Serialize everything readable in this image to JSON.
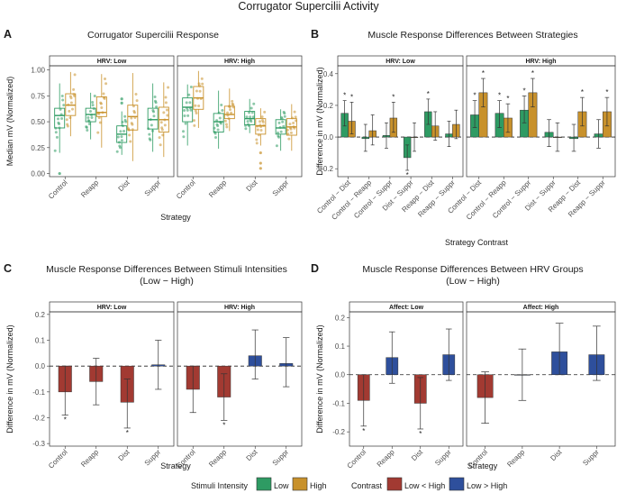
{
  "main_title": "Corrugator Supercilii Activity",
  "colors": {
    "low": "#2e9b63",
    "high": "#c8912b",
    "low_lt_high": "#a23a32",
    "low_gt_high": "#2e4f9c",
    "strip_bg": "#ffffff",
    "frame": "#333333"
  },
  "legend": {
    "stimuli_title": "Stimuli Intensity",
    "stimuli_items": [
      {
        "label": "Low",
        "color_key": "low"
      },
      {
        "label": "High",
        "color_key": "high"
      }
    ],
    "contrast_title": "Contrast",
    "contrast_items": [
      {
        "label": "Low < High",
        "color_key": "low_lt_high"
      },
      {
        "label": "Low > High",
        "color_key": "low_gt_high"
      }
    ]
  },
  "chart_data": [
    {
      "id": "A",
      "letter": "A",
      "type": "box",
      "title": "Corrugator Supercilii Response",
      "xlabel": "Strategy",
      "ylabel": "Median mV (Normalized)",
      "ylim": [
        -0.03,
        1.04
      ],
      "yticks": [
        0.0,
        0.25,
        0.5,
        0.75,
        1.0
      ],
      "ytick_labels": [
        "0.00",
        "0.25",
        "0.50",
        "0.75",
        "1.00"
      ],
      "categories": [
        "Control",
        "Reapp",
        "Dist",
        "Suppr"
      ],
      "series_names": [
        "Low",
        "High"
      ],
      "facets": [
        {
          "label": "HRV: Low",
          "boxes": [
            {
              "cat": "Control",
              "series": "Low",
              "q1": 0.44,
              "med": 0.56,
              "q3": 0.63,
              "wmin": 0.2,
              "wmax": 0.87,
              "outliers": [
                0.0
              ]
            },
            {
              "cat": "Control",
              "series": "High",
              "q1": 0.56,
              "med": 0.66,
              "q3": 0.77,
              "wmin": 0.36,
              "wmax": 0.98,
              "outliers": []
            },
            {
              "cat": "Reapp",
              "series": "Low",
              "q1": 0.5,
              "med": 0.57,
              "q3": 0.63,
              "wmin": 0.33,
              "wmax": 0.78,
              "outliers": []
            },
            {
              "cat": "Reapp",
              "series": "High",
              "q1": 0.55,
              "med": 0.59,
              "q3": 0.74,
              "wmin": 0.25,
              "wmax": 0.96,
              "outliers": []
            },
            {
              "cat": "Dist",
              "series": "Low",
              "q1": 0.3,
              "med": 0.38,
              "q3": 0.46,
              "wmin": 0.18,
              "wmax": 0.6,
              "outliers": [
                0.68,
                0.72
              ]
            },
            {
              "cat": "Dist",
              "series": "High",
              "q1": 0.42,
              "med": 0.55,
              "q3": 0.66,
              "wmin": 0.12,
              "wmax": 0.97,
              "outliers": []
            },
            {
              "cat": "Suppr",
              "series": "Low",
              "q1": 0.43,
              "med": 0.52,
              "q3": 0.63,
              "wmin": 0.21,
              "wmax": 0.87,
              "outliers": []
            },
            {
              "cat": "Suppr",
              "series": "High",
              "q1": 0.4,
              "med": 0.52,
              "q3": 0.64,
              "wmin": 0.16,
              "wmax": 0.88,
              "outliers": []
            }
          ]
        },
        {
          "label": "HRV: High",
          "boxes": [
            {
              "cat": "Control",
              "series": "Low",
              "q1": 0.5,
              "med": 0.64,
              "q3": 0.73,
              "wmin": 0.27,
              "wmax": 0.86,
              "outliers": []
            },
            {
              "cat": "Control",
              "series": "High",
              "q1": 0.62,
              "med": 0.73,
              "q3": 0.84,
              "wmin": 0.44,
              "wmax": 0.99,
              "outliers": []
            },
            {
              "cat": "Reapp",
              "series": "Low",
              "q1": 0.4,
              "med": 0.5,
              "q3": 0.58,
              "wmin": 0.24,
              "wmax": 0.8,
              "outliers": []
            },
            {
              "cat": "Reapp",
              "series": "High",
              "q1": 0.53,
              "med": 0.57,
              "q3": 0.65,
              "wmin": 0.41,
              "wmax": 0.82,
              "outliers": []
            },
            {
              "cat": "Dist",
              "series": "Low",
              "q1": 0.47,
              "med": 0.53,
              "q3": 0.6,
              "wmin": 0.39,
              "wmax": 0.72,
              "outliers": []
            },
            {
              "cat": "Dist",
              "series": "High",
              "q1": 0.38,
              "med": 0.46,
              "q3": 0.53,
              "wmin": 0.27,
              "wmax": 0.63,
              "outliers": [
                0.2,
                0.1,
                0.05
              ]
            },
            {
              "cat": "Suppr",
              "series": "Low",
              "q1": 0.38,
              "med": 0.44,
              "q3": 0.52,
              "wmin": 0.22,
              "wmax": 0.62,
              "outliers": []
            },
            {
              "cat": "Suppr",
              "series": "High",
              "q1": 0.37,
              "med": 0.45,
              "q3": 0.53,
              "wmin": 0.22,
              "wmax": 0.67,
              "outliers": []
            }
          ]
        }
      ]
    },
    {
      "id": "B",
      "letter": "B",
      "type": "bar",
      "title": "Muscle Response Differences Between Strategies",
      "xlabel": "Strategy Contrast",
      "ylabel": "Difference in mV (Normalized)",
      "ylim": [
        -0.25,
        0.45
      ],
      "yticks": [
        -0.2,
        0.0,
        0.2,
        0.4
      ],
      "ytick_labels": [
        "-0.2",
        "0.0",
        "0.2",
        "0.4"
      ],
      "categories": [
        "Control − Dist",
        "Control − Reapp",
        "Control − Suppr",
        "Dist − Suppr",
        "Reapp − Dist",
        "Reapp − Suppr"
      ],
      "series_names": [
        "Low",
        "High"
      ],
      "facets": [
        {
          "label": "HRV: Low",
          "bars": [
            {
              "cat": 0,
              "series": "Low",
              "value": 0.15,
              "lo": 0.07,
              "hi": 0.23,
              "star": true
            },
            {
              "cat": 0,
              "series": "High",
              "value": 0.1,
              "lo": 0.02,
              "hi": 0.22,
              "star": true
            },
            {
              "cat": 1,
              "series": "Low",
              "value": -0.01,
              "lo": -0.09,
              "hi": 0.08,
              "star": false
            },
            {
              "cat": 1,
              "series": "High",
              "value": 0.04,
              "lo": -0.05,
              "hi": 0.14,
              "star": false
            },
            {
              "cat": 2,
              "series": "Low",
              "value": 0.01,
              "lo": -0.07,
              "hi": 0.09,
              "star": false
            },
            {
              "cat": 2,
              "series": "High",
              "value": 0.12,
              "lo": 0.03,
              "hi": 0.22,
              "star": true
            },
            {
              "cat": 3,
              "series": "Low",
              "value": -0.13,
              "lo": -0.21,
              "hi": -0.05,
              "star": true
            },
            {
              "cat": 3,
              "series": "High",
              "value": 0.0,
              "lo": -0.09,
              "hi": 0.09,
              "star": false
            },
            {
              "cat": 4,
              "series": "Low",
              "value": 0.16,
              "lo": 0.08,
              "hi": 0.24,
              "star": true
            },
            {
              "cat": 4,
              "series": "High",
              "value": 0.07,
              "lo": -0.02,
              "hi": 0.16,
              "star": false
            },
            {
              "cat": 5,
              "series": "Low",
              "value": 0.02,
              "lo": -0.06,
              "hi": 0.1,
              "star": false
            },
            {
              "cat": 5,
              "series": "High",
              "value": 0.08,
              "lo": -0.01,
              "hi": 0.17,
              "star": false
            }
          ]
        },
        {
          "label": "HRV: High",
          "bars": [
            {
              "cat": 0,
              "series": "Low",
              "value": 0.14,
              "lo": 0.06,
              "hi": 0.23,
              "star": true
            },
            {
              "cat": 0,
              "series": "High",
              "value": 0.28,
              "lo": 0.19,
              "hi": 0.37,
              "star": true
            },
            {
              "cat": 1,
              "series": "Low",
              "value": 0.15,
              "lo": 0.06,
              "hi": 0.23,
              "star": true
            },
            {
              "cat": 1,
              "series": "High",
              "value": 0.12,
              "lo": 0.03,
              "hi": 0.21,
              "star": true
            },
            {
              "cat": 2,
              "series": "Low",
              "value": 0.17,
              "lo": 0.09,
              "hi": 0.26,
              "star": true
            },
            {
              "cat": 2,
              "series": "High",
              "value": 0.28,
              "lo": 0.19,
              "hi": 0.37,
              "star": true
            },
            {
              "cat": 3,
              "series": "Low",
              "value": 0.03,
              "lo": -0.06,
              "hi": 0.11,
              "star": false
            },
            {
              "cat": 3,
              "series": "High",
              "value": 0.0,
              "lo": -0.09,
              "hi": 0.09,
              "star": false
            },
            {
              "cat": 4,
              "series": "Low",
              "value": -0.01,
              "lo": -0.09,
              "hi": 0.08,
              "star": false
            },
            {
              "cat": 4,
              "series": "High",
              "value": 0.16,
              "lo": 0.07,
              "hi": 0.25,
              "star": true
            },
            {
              "cat": 5,
              "series": "Low",
              "value": 0.02,
              "lo": -0.07,
              "hi": 0.11,
              "star": false
            },
            {
              "cat": 5,
              "series": "High",
              "value": 0.16,
              "lo": 0.07,
              "hi": 0.25,
              "star": true
            }
          ]
        }
      ]
    },
    {
      "id": "C",
      "letter": "C",
      "type": "bar",
      "title": "Muscle Response Differences Between Stimuli Intensities",
      "subtitle": "(Low − High)",
      "xlabel": "Strategy",
      "ylabel": "Difference in mV (Normalized)",
      "ylim": [
        -0.31,
        0.21
      ],
      "yticks": [
        -0.3,
        -0.2,
        -0.1,
        0.0,
        0.1,
        0.2
      ],
      "ytick_labels": [
        "-0.3",
        "-0.2",
        "-0.1",
        "0.0",
        "0.1",
        "0.2"
      ],
      "categories": [
        "Control",
        "Reapp",
        "Dist",
        "Suppr"
      ],
      "facets": [
        {
          "label": "HRV: Low",
          "bars": [
            {
              "cat": 0,
              "value": -0.1,
              "lo": -0.19,
              "hi": 0.0,
              "star": true
            },
            {
              "cat": 1,
              "value": -0.06,
              "lo": -0.15,
              "hi": 0.03,
              "star": false
            },
            {
              "cat": 2,
              "value": -0.14,
              "lo": -0.24,
              "hi": -0.05,
              "star": true
            },
            {
              "cat": 3,
              "value": 0.005,
              "lo": -0.09,
              "hi": 0.1,
              "star": false
            }
          ]
        },
        {
          "label": "HRV: High",
          "bars": [
            {
              "cat": 0,
              "value": -0.09,
              "lo": -0.18,
              "hi": 0.0,
              "star": false
            },
            {
              "cat": 1,
              "value": -0.12,
              "lo": -0.21,
              "hi": -0.03,
              "star": true
            },
            {
              "cat": 2,
              "value": 0.04,
              "lo": -0.05,
              "hi": 0.14,
              "star": false
            },
            {
              "cat": 3,
              "value": 0.01,
              "lo": -0.08,
              "hi": 0.11,
              "star": false
            }
          ]
        }
      ]
    },
    {
      "id": "D",
      "letter": "D",
      "type": "bar",
      "title": "Muscle Response Differences Between HRV Groups",
      "subtitle": "(Low − High)",
      "xlabel": "Strategy",
      "ylabel": "Difference in mV (Normalized)",
      "ylim": [
        -0.25,
        0.22
      ],
      "yticks": [
        -0.2,
        -0.1,
        0.0,
        0.1,
        0.2
      ],
      "ytick_labels": [
        "-0.2",
        "-0.1",
        "0.0",
        "0.1",
        "0.2"
      ],
      "categories": [
        "Control",
        "Reapp",
        "Dist",
        "Suppr"
      ],
      "facets": [
        {
          "label": "Affect: Low",
          "bars": [
            {
              "cat": 0,
              "value": -0.09,
              "lo": -0.18,
              "hi": 0.0,
              "star": true
            },
            {
              "cat": 1,
              "value": 0.06,
              "lo": -0.03,
              "hi": 0.15,
              "star": false
            },
            {
              "cat": 2,
              "value": -0.1,
              "lo": -0.19,
              "hi": -0.01,
              "star": true
            },
            {
              "cat": 3,
              "value": 0.07,
              "lo": -0.02,
              "hi": 0.16,
              "star": false
            }
          ]
        },
        {
          "label": "Affect: High",
          "bars": [
            {
              "cat": 0,
              "value": -0.08,
              "lo": -0.17,
              "hi": 0.01,
              "star": false
            },
            {
              "cat": 1,
              "value": 0.0,
              "lo": -0.09,
              "hi": 0.09,
              "star": false
            },
            {
              "cat": 2,
              "value": 0.08,
              "lo": 0.0,
              "hi": 0.18,
              "star": false
            },
            {
              "cat": 3,
              "value": 0.07,
              "lo": -0.02,
              "hi": 0.17,
              "star": false
            }
          ]
        }
      ]
    }
  ]
}
